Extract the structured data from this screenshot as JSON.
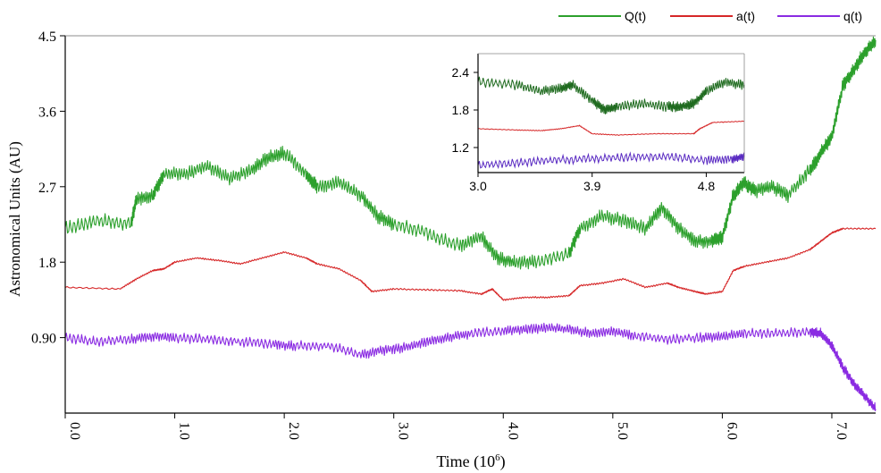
{
  "chart_data": {
    "type": "line",
    "xlabel": "Time (10",
    "xlabel_exp": "6",
    "xlabel_close": ")",
    "ylabel": "Astronomical Units (AU)",
    "xlim": [
      0.0,
      7.4
    ],
    "ylim": [
      0.0,
      4.5
    ],
    "x_ticks": [
      0.0,
      1.0,
      2.0,
      3.0,
      4.0,
      5.0,
      6.0,
      7.0
    ],
    "x_tick_labels": [
      "0.0",
      "1.0",
      "2.0",
      "3.0",
      "4.0",
      "5.0",
      "6.0",
      "7.0"
    ],
    "y_ticks": [
      0.9,
      1.8,
      2.7,
      3.6,
      4.5
    ],
    "y_tick_labels": [
      "0.90",
      "1.8",
      "2.7",
      "3.6",
      "4.5"
    ],
    "legend": [
      {
        "name": "Q(t)",
        "color": "#2ca02c"
      },
      {
        "name": "a(t)",
        "color": "#d62728"
      },
      {
        "name": "q(t)",
        "color": "#8a2be2"
      }
    ],
    "legend_position": "top-right",
    "series": [
      {
        "name": "Q(t)",
        "color": "#2ca02c",
        "x": [
          0.0,
          0.3,
          0.6,
          0.65,
          0.8,
          0.9,
          1.1,
          1.3,
          1.5,
          1.7,
          1.85,
          2.0,
          2.2,
          2.3,
          2.5,
          2.7,
          2.85,
          3.0,
          3.3,
          3.6,
          3.8,
          3.95,
          4.1,
          4.3,
          4.6,
          4.7,
          4.9,
          5.1,
          5.3,
          5.45,
          5.6,
          5.75,
          5.9,
          6.0,
          6.1,
          6.2,
          6.3,
          6.45,
          6.6,
          6.8,
          6.9,
          7.0,
          7.1,
          7.2,
          7.3,
          7.4
        ],
        "y": [
          2.2,
          2.3,
          2.25,
          2.55,
          2.6,
          2.85,
          2.85,
          2.95,
          2.8,
          2.9,
          3.05,
          3.1,
          2.85,
          2.7,
          2.75,
          2.6,
          2.35,
          2.25,
          2.15,
          2.0,
          2.1,
          1.85,
          1.8,
          1.8,
          1.9,
          2.2,
          2.35,
          2.3,
          2.2,
          2.45,
          2.2,
          2.05,
          2.05,
          2.1,
          2.6,
          2.75,
          2.65,
          2.7,
          2.6,
          2.9,
          3.1,
          3.3,
          3.9,
          4.1,
          4.3,
          4.45
        ]
      },
      {
        "name": "a(t)",
        "color": "#d62728",
        "x": [
          0.0,
          0.5,
          0.65,
          0.8,
          0.9,
          1.0,
          1.2,
          1.4,
          1.6,
          1.8,
          2.0,
          2.2,
          2.3,
          2.5,
          2.7,
          2.8,
          3.0,
          3.3,
          3.6,
          3.8,
          3.9,
          4.0,
          4.2,
          4.4,
          4.6,
          4.7,
          4.9,
          5.1,
          5.3,
          5.5,
          5.6,
          5.75,
          5.85,
          6.0,
          6.1,
          6.2,
          6.4,
          6.6,
          6.8,
          6.9,
          7.0,
          7.1,
          7.4
        ],
        "y": [
          1.5,
          1.48,
          1.6,
          1.7,
          1.72,
          1.8,
          1.85,
          1.82,
          1.78,
          1.85,
          1.92,
          1.85,
          1.78,
          1.72,
          1.58,
          1.45,
          1.48,
          1.47,
          1.46,
          1.42,
          1.48,
          1.35,
          1.38,
          1.38,
          1.4,
          1.52,
          1.55,
          1.6,
          1.5,
          1.55,
          1.5,
          1.45,
          1.42,
          1.45,
          1.7,
          1.75,
          1.8,
          1.85,
          1.95,
          2.05,
          2.15,
          2.2,
          2.2
        ]
      },
      {
        "name": "q(t)",
        "color": "#8a2be2",
        "x": [
          0.0,
          0.3,
          0.6,
          0.8,
          1.0,
          1.3,
          1.6,
          1.9,
          2.1,
          2.4,
          2.7,
          2.9,
          3.1,
          3.3,
          3.5,
          3.7,
          4.0,
          4.2,
          4.4,
          4.6,
          4.8,
          5.0,
          5.2,
          5.5,
          5.8,
          6.0,
          6.2,
          6.5,
          6.8,
          6.9,
          7.0,
          7.1,
          7.2,
          7.3,
          7.4
        ],
        "y": [
          0.9,
          0.85,
          0.88,
          0.92,
          0.9,
          0.88,
          0.85,
          0.82,
          0.8,
          0.8,
          0.7,
          0.75,
          0.78,
          0.85,
          0.9,
          0.95,
          0.98,
          1.0,
          1.02,
          1.0,
          0.95,
          0.98,
          0.92,
          0.88,
          0.9,
          0.92,
          0.95,
          0.95,
          0.97,
          0.95,
          0.8,
          0.55,
          0.35,
          0.2,
          0.05
        ]
      }
    ],
    "inset": {
      "xlim": [
        3.0,
        5.1
      ],
      "ylim": [
        0.8,
        2.7
      ],
      "x_ticks": [
        3.0,
        3.9,
        4.8
      ],
      "x_tick_labels": [
        "3.0",
        "3.9",
        "4.8"
      ],
      "y_ticks": [
        1.2,
        1.8,
        2.4
      ],
      "y_tick_labels": [
        "1.2",
        "1.8",
        "2.4"
      ],
      "series": [
        {
          "name": "Q(t)",
          "color": "#1f6b1f",
          "x": [
            3.0,
            3.3,
            3.5,
            3.65,
            3.75,
            3.9,
            4.0,
            4.1,
            4.3,
            4.5,
            4.6,
            4.7,
            4.8,
            4.95,
            5.1
          ],
          "y": [
            2.25,
            2.2,
            2.1,
            2.15,
            2.2,
            1.95,
            1.8,
            1.85,
            1.9,
            1.85,
            1.85,
            1.9,
            2.1,
            2.25,
            2.2
          ]
        },
        {
          "name": "a(t)",
          "color": "#d62728",
          "x": [
            3.0,
            3.3,
            3.5,
            3.65,
            3.8,
            3.9,
            4.1,
            4.4,
            4.7,
            4.75,
            4.85,
            5.1
          ],
          "y": [
            1.5,
            1.48,
            1.47,
            1.5,
            1.55,
            1.42,
            1.4,
            1.42,
            1.42,
            1.5,
            1.6,
            1.62
          ]
        },
        {
          "name": "q(t)",
          "color": "#5a2bc2",
          "x": [
            3.0,
            3.3,
            3.6,
            3.9,
            4.2,
            4.5,
            4.8,
            5.0,
            5.1
          ],
          "y": [
            0.92,
            0.95,
            1.0,
            1.02,
            1.05,
            1.05,
            1.0,
            1.02,
            1.05
          ]
        }
      ]
    }
  }
}
